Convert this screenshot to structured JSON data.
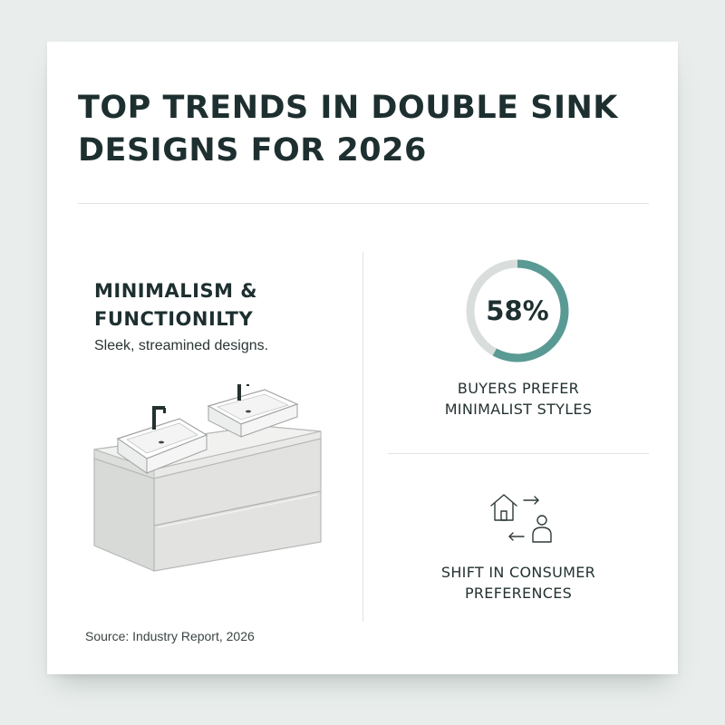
{
  "header": {
    "title": "TOP TRENDS IN DOUBLE SINK\nDESIGNS FOR 2026"
  },
  "left_panel": {
    "heading": "MINIMALISM &\nFUNCTIONILTY",
    "subtext": "Sleek, streamined designs.",
    "image_icon": "double-sink-vanity-icon"
  },
  "stat": {
    "value": 58,
    "value_text": "58%",
    "caption": "BUYERS PREFER\nMINIMALIST STYLES",
    "track_color": "#d9dedc",
    "fill_color": "#5a9a94"
  },
  "shift": {
    "icon": "house-person-exchange-icon",
    "caption": "SHIFT IN CONSUMER\nPREFERENCES"
  },
  "footer": {
    "source": "Source: Industry Report, 2026"
  },
  "colors": {
    "background": "#e9eeec",
    "card": "#ffffff",
    "text": "#1e2f30",
    "accent": "#5a9a94"
  }
}
